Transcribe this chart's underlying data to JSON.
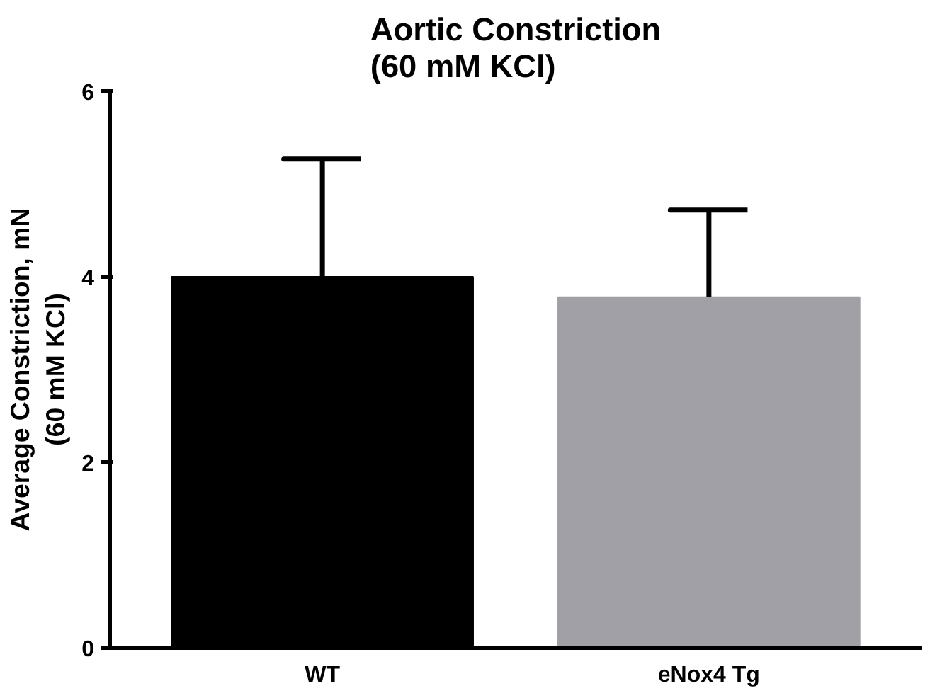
{
  "chart_data": {
    "type": "bar",
    "title": "Aortic Constriction\n(60 mM KCl)",
    "ylabel": "Average Constriction, mN\n(60 mM KCl)",
    "categories": [
      "WT",
      "eNox4 Tg"
    ],
    "values": [
      4.0,
      3.78
    ],
    "colors": [
      "#000000",
      "#a0a0a6"
    ],
    "errors": [
      [
        4.0,
        5.27
      ],
      [
        3.78,
        4.72
      ]
    ],
    "ylim": [
      0,
      6
    ],
    "yticks": [
      0,
      2,
      4,
      6
    ],
    "grid": false,
    "legend": false
  }
}
